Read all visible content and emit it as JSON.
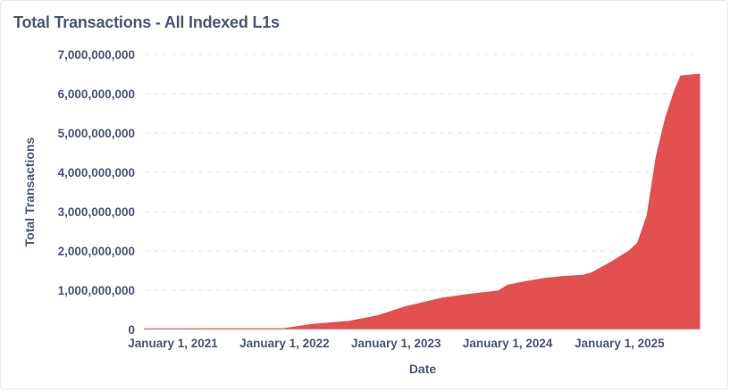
{
  "chart_data": {
    "type": "area",
    "title": "Total Transactions - All Indexed L1s",
    "xlabel": "Date",
    "ylabel": "Total Transactions",
    "ylim": [
      0,
      7000000000
    ],
    "yticks": [
      {
        "value": 0,
        "label": "0"
      },
      {
        "value": 1000000000,
        "label": "1,000,000,000"
      },
      {
        "value": 2000000000,
        "label": "2,000,000,000"
      },
      {
        "value": 3000000000,
        "label": "3,000,000,000"
      },
      {
        "value": 4000000000,
        "label": "4,000,000,000"
      },
      {
        "value": 5000000000,
        "label": "5,000,000,000"
      },
      {
        "value": 6000000000,
        "label": "6,000,000,000"
      },
      {
        "value": 7000000000,
        "label": "7,000,000,000"
      }
    ],
    "xlim": [
      "2020-10-01",
      "2025-09-20"
    ],
    "xticks": [
      {
        "date": "2021-01-01",
        "label": "January 1, 2021"
      },
      {
        "date": "2022-01-01",
        "label": "January 1, 2022"
      },
      {
        "date": "2023-01-01",
        "label": "January 1, 2023"
      },
      {
        "date": "2024-01-01",
        "label": "January 1, 2024"
      },
      {
        "date": "2025-01-01",
        "label": "January 1, 2025"
      }
    ],
    "grid": "horizontal-dashed",
    "legend": "none",
    "color": "#e35050",
    "series": [
      {
        "points": [
          [
            "2020-10-01",
            20000000
          ],
          [
            "2021-06-01",
            22000000
          ],
          [
            "2022-01-01",
            25000000
          ],
          [
            "2022-04-01",
            130000000
          ],
          [
            "2022-08-01",
            210000000
          ],
          [
            "2022-11-01",
            350000000
          ],
          [
            "2023-02-01",
            580000000
          ],
          [
            "2023-06-01",
            800000000
          ],
          [
            "2023-09-01",
            900000000
          ],
          [
            "2023-12-01",
            980000000
          ],
          [
            "2024-01-01",
            1130000000
          ],
          [
            "2024-03-01",
            1220000000
          ],
          [
            "2024-05-01",
            1300000000
          ],
          [
            "2024-07-01",
            1350000000
          ],
          [
            "2024-09-01",
            1380000000
          ],
          [
            "2024-10-01",
            1440000000
          ],
          [
            "2024-12-01",
            1700000000
          ],
          [
            "2025-02-01",
            2000000000
          ],
          [
            "2025-03-01",
            2200000000
          ],
          [
            "2025-04-01",
            2900000000
          ],
          [
            "2025-05-01",
            4400000000
          ],
          [
            "2025-06-01",
            5400000000
          ],
          [
            "2025-07-01",
            6100000000
          ],
          [
            "2025-07-20",
            6450000000
          ],
          [
            "2025-09-20",
            6500000000
          ]
        ]
      }
    ]
  }
}
